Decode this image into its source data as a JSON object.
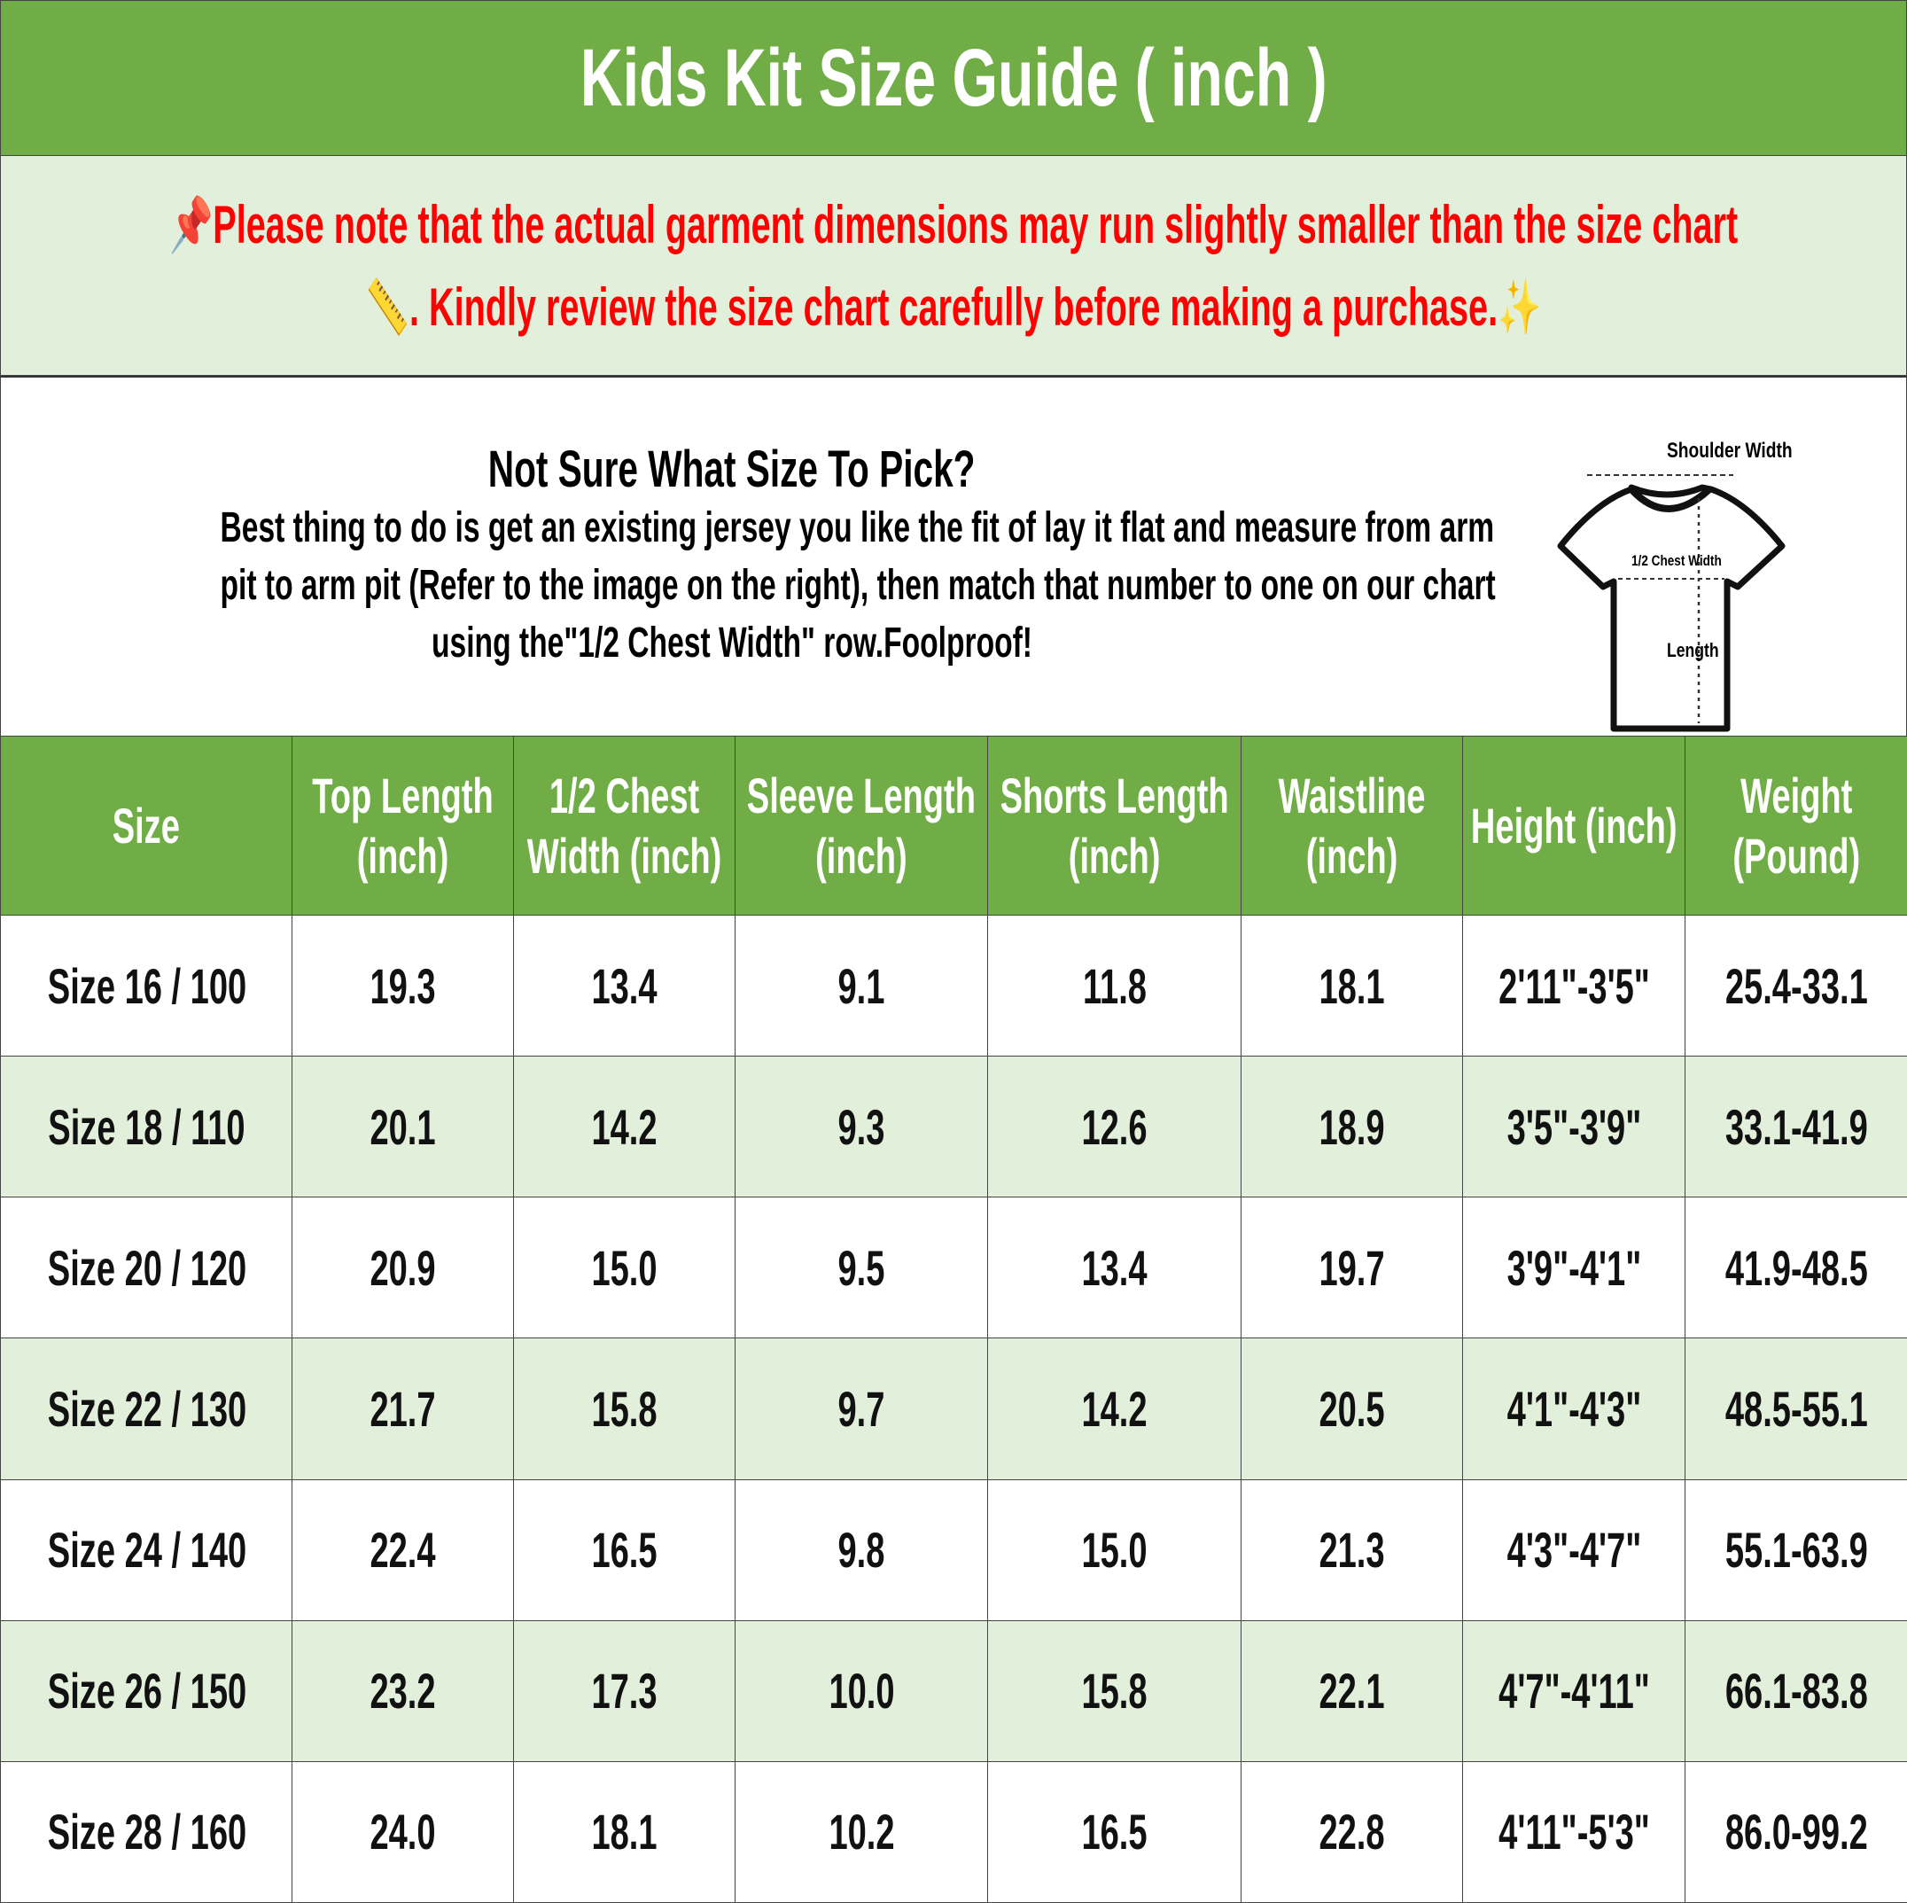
{
  "header": {
    "title": "Kids Kit Size Guide ( inch )"
  },
  "note": {
    "line1": "Please note that the actual garment dimensions may run slightly smaller than the size chart",
    "line2": ". Kindly review the size chart carefully before making a purchase.",
    "icons": [
      "pushpin-icon",
      "ruler-icon",
      "sparkles-icon"
    ],
    "color": "#ff0000"
  },
  "intro": {
    "title": "Not Sure What Size To Pick?",
    "lines": [
      "Best thing to do is get an existing jersey you like the fit of lay it flat and measure from arm",
      "pit to arm pit (Refer to the image on the right), then match that number to one on our chart",
      "using the\"1/2 Chest Width\" row.Foolproof!"
    ]
  },
  "diagram": {
    "shoulder_label": "Shoulder Width",
    "chest_label": "1/2 Chest Width",
    "length_label": "Length"
  },
  "colors": {
    "accent": "#70ad47",
    "alt_row": "#e2efda"
  },
  "table": {
    "headers": [
      "Size",
      "Top Length (inch)",
      "1/2 Chest Width (inch)",
      "Sleeve Length (inch)",
      "Shorts Length (inch)",
      "Waistline (inch)",
      "Height (inch)",
      "Weight (Pound)"
    ],
    "rows": [
      [
        "Size 16 / 100",
        "19.3",
        "13.4",
        "9.1",
        "11.8",
        "18.1",
        "2'11\"-3'5\"",
        "25.4-33.1"
      ],
      [
        "Size 18 / 110",
        "20.1",
        "14.2",
        "9.3",
        "12.6",
        "18.9",
        "3'5\"-3'9\"",
        "33.1-41.9"
      ],
      [
        "Size 20 / 120",
        "20.9",
        "15.0",
        "9.5",
        "13.4",
        "19.7",
        "3'9\"-4'1\"",
        "41.9-48.5"
      ],
      [
        "Size 22 / 130",
        "21.7",
        "15.8",
        "9.7",
        "14.2",
        "20.5",
        "4'1\"-4'3\"",
        "48.5-55.1"
      ],
      [
        "Size 24 / 140",
        "22.4",
        "16.5",
        "9.8",
        "15.0",
        "21.3",
        "4'3\"-4'7\"",
        "55.1-63.9"
      ],
      [
        "Size 26 / 150",
        "23.2",
        "17.3",
        "10.0",
        "15.8",
        "22.1",
        "4'7\"-4'11\"",
        "66.1-83.8"
      ],
      [
        "Size 28 / 160",
        "24.0",
        "18.1",
        "10.2",
        "16.5",
        "22.8",
        "4'11\"-5'3\"",
        "86.0-99.2"
      ]
    ]
  }
}
